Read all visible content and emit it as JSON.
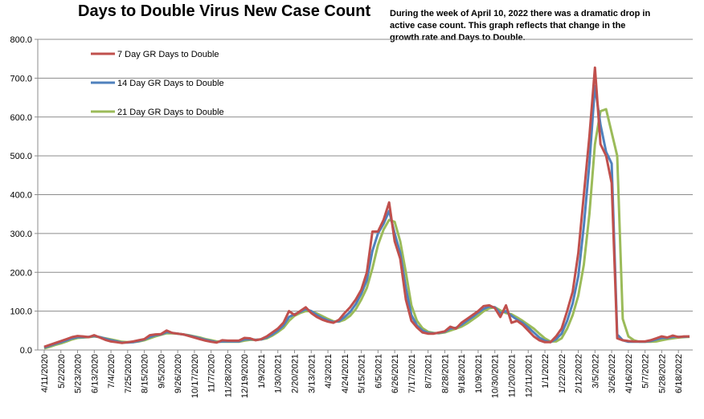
{
  "chart_data": {
    "type": "line",
    "title": "Days to Double Virus New Case Count",
    "subtitle": "During the week of April 10, 2022 there was a dramatic drop in active case count.  This graph reflects that change in the growth rate and Days to Double.",
    "xlabel": "",
    "ylabel": "",
    "ylim": [
      0,
      800
    ],
    "yticks": [
      "0.0",
      "100.0",
      "200.0",
      "300.0",
      "400.0",
      "500.0",
      "600.0",
      "700.0",
      "800.0"
    ],
    "grid": "horizontal",
    "legend_position": "top-left",
    "x": [
      "4/11/2020",
      "4/18/2020",
      "4/25/2020",
      "5/2/2020",
      "5/9/2020",
      "5/16/2020",
      "5/23/2020",
      "5/30/2020",
      "6/6/2020",
      "6/13/2020",
      "6/20/2020",
      "6/27/2020",
      "7/4/2020",
      "7/11/2020",
      "7/18/2020",
      "7/25/2020",
      "8/1/2020",
      "8/8/2020",
      "8/15/2020",
      "8/22/2020",
      "8/29/2020",
      "9/5/2020",
      "9/12/2020",
      "9/19/2020",
      "9/26/2020",
      "10/3/2020",
      "10/10/2020",
      "10/17/2020",
      "10/24/2020",
      "10/31/2020",
      "11/7/2020",
      "11/14/2020",
      "11/21/2020",
      "11/28/2020",
      "12/5/2020",
      "12/12/2020",
      "12/19/2020",
      "12/26/2020",
      "1/2/2021",
      "1/9/2021",
      "1/16/2021",
      "1/23/2021",
      "1/30/2021",
      "2/6/2021",
      "2/13/2021",
      "2/20/2021",
      "2/27/2021",
      "3/6/2021",
      "3/13/2021",
      "3/20/2021",
      "3/27/2021",
      "4/3/2021",
      "4/10/2021",
      "4/17/2021",
      "4/24/2021",
      "5/1/2021",
      "5/8/2021",
      "5/15/2021",
      "5/22/2021",
      "5/29/2021",
      "6/5/2021",
      "6/12/2021",
      "6/19/2021",
      "6/26/2021",
      "7/3/2021",
      "7/10/2021",
      "7/17/2021",
      "7/24/2021",
      "7/31/2021",
      "8/7/2021",
      "8/14/2021",
      "8/21/2021",
      "8/28/2021",
      "9/4/2021",
      "9/11/2021",
      "9/18/2021",
      "9/25/2021",
      "10/2/2021",
      "10/9/2021",
      "10/16/2021",
      "10/23/2021",
      "10/30/2021",
      "11/6/2021",
      "11/13/2021",
      "11/20/2021",
      "11/27/2021",
      "12/4/2021",
      "12/11/2021",
      "12/18/2021",
      "12/25/2021",
      "1/1/2022",
      "1/8/2022",
      "1/15/2022",
      "1/22/2022",
      "1/29/2022",
      "2/5/2022",
      "2/12/2022",
      "2/19/2022",
      "2/26/2022",
      "3/5/2022",
      "3/12/2022",
      "3/19/2022",
      "3/26/2022",
      "4/2/2022",
      "4/9/2022",
      "4/16/2022",
      "4/23/2022",
      "4/30/2022",
      "5/7/2022",
      "5/14/2022",
      "5/21/2022",
      "5/28/2022",
      "6/4/2022",
      "6/11/2022",
      "6/18/2022",
      "6/25/2022",
      "7/2/2022"
    ],
    "xtick_labels": [
      "4/11/2020",
      "5/2/2020",
      "5/23/2020",
      "6/13/2020",
      "7/4/2020",
      "7/25/2020",
      "8/15/2020",
      "9/5/2020",
      "9/26/2020",
      "10/17/2020",
      "11/7/2020",
      "11/28/2020",
      "12/19/2020",
      "1/9/2021",
      "1/30/2021",
      "2/20/2021",
      "3/13/2021",
      "4/3/2021",
      "4/24/2021",
      "5/15/2021",
      "6/5/2021",
      "6/26/2021",
      "7/17/2021",
      "8/7/2021",
      "8/28/2021",
      "9/18/2021",
      "10/9/2021",
      "10/30/2021",
      "11/20/2021",
      "12/11/2021",
      "1/1/2022",
      "1/22/2022",
      "2/12/2022",
      "3/5/2022",
      "3/26/2022",
      "4/16/2022",
      "5/7/2022",
      "5/28/2022",
      "6/18/2022"
    ],
    "series": [
      {
        "name": "7 Day GR Days to Double",
        "color": "#c0504d",
        "values": [
          8,
          13,
          18,
          23,
          28,
          33,
          36,
          35,
          33,
          38,
          32,
          26,
          22,
          20,
          18,
          20,
          22,
          25,
          28,
          38,
          40,
          41,
          50,
          44,
          42,
          40,
          36,
          32,
          28,
          24,
          21,
          19,
          25,
          24,
          24,
          24,
          31,
          30,
          25,
          28,
          35,
          45,
          55,
          70,
          100,
          90,
          100,
          110,
          95,
          85,
          78,
          73,
          70,
          78,
          95,
          110,
          130,
          155,
          200,
          305,
          305,
          335,
          380,
          280,
          235,
          130,
          75,
          58,
          45,
          42,
          42,
          45,
          48,
          60,
          55,
          70,
          80,
          90,
          100,
          113,
          115,
          108,
          85,
          115,
          70,
          75,
          65,
          50,
          35,
          25,
          20,
          20,
          35,
          55,
          100,
          150,
          250,
          400,
          550,
          727,
          530,
          500,
          430,
          30,
          25,
          23,
          22,
          22,
          22,
          25,
          30,
          35,
          32,
          37,
          33,
          35,
          35
        ]
      },
      {
        "name": "14 Day GR Days to Double",
        "color": "#4f81bd",
        "values": [
          6,
          11,
          16,
          20,
          25,
          30,
          33,
          33,
          34,
          36,
          33,
          29,
          25,
          22,
          19,
          19,
          20,
          23,
          27,
          33,
          38,
          40,
          46,
          44,
          42,
          40,
          37,
          34,
          30,
          26,
          23,
          20,
          22,
          22,
          22,
          22,
          27,
          28,
          26,
          27,
          32,
          40,
          50,
          63,
          85,
          92,
          98,
          105,
          100,
          90,
          82,
          76,
          72,
          74,
          85,
          98,
          118,
          145,
          180,
          255,
          300,
          325,
          358,
          300,
          250,
          160,
          90,
          63,
          50,
          44,
          43,
          44,
          47,
          55,
          57,
          65,
          75,
          85,
          96,
          106,
          112,
          110,
          95,
          100,
          88,
          78,
          70,
          58,
          45,
          32,
          24,
          20,
          28,
          42,
          75,
          120,
          190,
          320,
          480,
          680,
          580,
          510,
          480,
          40,
          25,
          21,
          21,
          21,
          21,
          23,
          27,
          31,
          31,
          34,
          34,
          34,
          35
        ]
      },
      {
        "name": "21 Day GR Days to Double",
        "color": "#9bbb59",
        "values": [
          4,
          8,
          13,
          17,
          22,
          27,
          31,
          32,
          33,
          35,
          33,
          30,
          27,
          24,
          21,
          20,
          20,
          22,
          25,
          30,
          35,
          39,
          43,
          43,
          42,
          40,
          38,
          35,
          32,
          28,
          25,
          22,
          21,
          21,
          21,
          21,
          24,
          26,
          26,
          27,
          30,
          37,
          46,
          57,
          75,
          88,
          95,
          100,
          100,
          94,
          87,
          80,
          74,
          73,
          78,
          88,
          105,
          130,
          160,
          210,
          270,
          310,
          335,
          330,
          280,
          200,
          115,
          75,
          56,
          47,
          44,
          43,
          45,
          50,
          55,
          60,
          68,
          78,
          88,
          100,
          107,
          110,
          102,
          95,
          92,
          84,
          75,
          65,
          55,
          42,
          30,
          22,
          22,
          30,
          55,
          90,
          140,
          220,
          350,
          530,
          615,
          620,
          560,
          500,
          80,
          35,
          25,
          21,
          21,
          21,
          22,
          25,
          28,
          30,
          32,
          33,
          34
        ]
      }
    ]
  }
}
